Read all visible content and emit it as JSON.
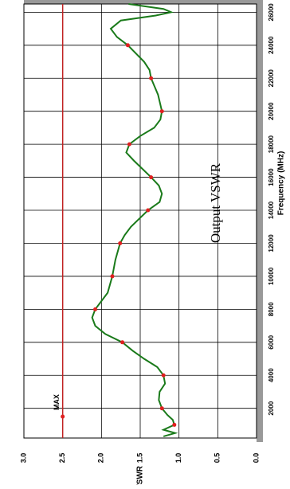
{
  "chart_data": {
    "type": "line",
    "title": "Output VSWR",
    "x_label": "Frequency (MHz)",
    "y_label": "VSWR",
    "xlim": [
      200,
      26500
    ],
    "ylim": [
      0,
      3
    ],
    "xticks": [
      2000,
      4000,
      6000,
      8000,
      10000,
      12000,
      14000,
      16000,
      18000,
      20000,
      22000,
      24000,
      26000
    ],
    "yticks": [
      {
        "value": 0,
        "label": "0.0"
      },
      0.5,
      {
        "value": 1,
        "label": "1.0"
      },
      1.5,
      {
        "value": 2,
        "label": "2.0"
      },
      2.5,
      {
        "value": 3,
        "label": "3.0"
      }
    ],
    "grid": true,
    "series": [
      {
        "color": "#1a7a1a",
        "x": [
          300,
          500,
          700,
          1000,
          1300,
          1600,
          2000,
          2500,
          3000,
          3500,
          4000,
          4500,
          5000,
          5500,
          6000,
          6500,
          7000,
          7500,
          8000,
          8500,
          9000,
          10000,
          11000,
          12000,
          12500,
          13000,
          14000,
          14500,
          15000,
          15500,
          16000,
          17000,
          17500,
          18000,
          18500,
          19000,
          19500,
          20000,
          21000,
          22000,
          22500,
          23000,
          24000,
          24500,
          25000,
          25500,
          25800,
          26000,
          26200,
          26500
        ],
        "values": [
          1.2,
          1.05,
          1.2,
          1.06,
          1.08,
          1.15,
          1.22,
          1.26,
          1.25,
          1.18,
          1.2,
          1.28,
          1.45,
          1.6,
          1.73,
          1.95,
          2.08,
          2.12,
          2.08,
          2.0,
          1.92,
          1.86,
          1.82,
          1.76,
          1.7,
          1.62,
          1.4,
          1.25,
          1.22,
          1.26,
          1.36,
          1.58,
          1.68,
          1.64,
          1.5,
          1.32,
          1.24,
          1.22,
          1.27,
          1.36,
          1.38,
          1.45,
          1.66,
          1.8,
          1.88,
          1.75,
          1.3,
          1.1,
          1.2,
          1.65
        ]
      },
      {
        "color": "#e02020",
        "markers_only": true,
        "x": [
          1000,
          2000,
          4000,
          6000,
          8000,
          10000,
          12000,
          14000,
          16000,
          18000,
          20000,
          22000,
          24000
        ],
        "values": [
          1.06,
          1.22,
          1.2,
          1.73,
          2.08,
          1.86,
          1.76,
          1.4,
          1.36,
          1.64,
          1.22,
          1.36,
          1.66
        ]
      }
    ],
    "annotations": [
      {
        "text": "MAX",
        "x": 1500,
        "y": 2.5,
        "color": "#c02020"
      }
    ]
  }
}
